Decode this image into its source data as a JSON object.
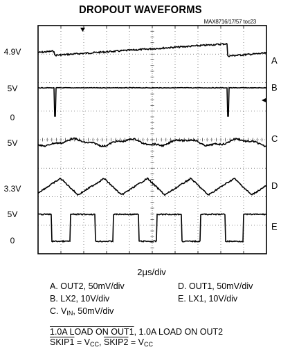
{
  "chart_data": {
    "type": "line",
    "title": "DROPOUT WAVEFORMS",
    "doc_number": "MAX8716/17/57 toc23",
    "xlabel": "2μs/div",
    "grid": true,
    "x_divisions": 10,
    "y_divisions": 8,
    "y_labels": [
      "4.9V",
      "5V",
      "0",
      "5V",
      "3.3V",
      "5V",
      "0"
    ],
    "trace_labels": [
      "A",
      "B",
      "C",
      "D",
      "E"
    ],
    "series": [
      {
        "name": "A",
        "type": "sawtooth",
        "ref_value": "4.9V"
      },
      {
        "name": "B",
        "type": "pulse",
        "high": "5V",
        "low": "0",
        "edges_div": [
          0.7,
          8.3
        ]
      },
      {
        "name": "C",
        "type": "ripple",
        "ref_value": "5V"
      },
      {
        "name": "D",
        "type": "triangle",
        "ref_value": "3.3V"
      },
      {
        "name": "E",
        "type": "square",
        "high": "5V",
        "low": "0",
        "low_intervals_div": [
          [
            0.6,
            1.4
          ],
          [
            2.5,
            3.3
          ],
          [
            4.4,
            5.2
          ],
          [
            6.3,
            7.1
          ],
          [
            8.2,
            9.0
          ]
        ]
      }
    ],
    "legend": [
      {
        "text": "A. OUT2, 50mV/div"
      },
      {
        "text": "B. LX2, 10V/div"
      },
      {
        "pre": "C. V",
        "sub": "IN",
        "post": ", 50mV/div"
      },
      {
        "text": "D. OUT1, 50mV/div"
      },
      {
        "text": "E. LX1, 10V/div"
      }
    ],
    "conditions": {
      "line1": {
        "a": "1.0A LOAD ON ",
        "b": "OUT1",
        "c": ", 1.0A LOAD ON OUT2"
      },
      "line2": {
        "s1": "SKIP1",
        "eq1": " = V",
        "sub1": "CC",
        "sep": ",  ",
        "s2": "SKIP2",
        "eq2": " = V",
        "sub2": "CC"
      }
    }
  }
}
